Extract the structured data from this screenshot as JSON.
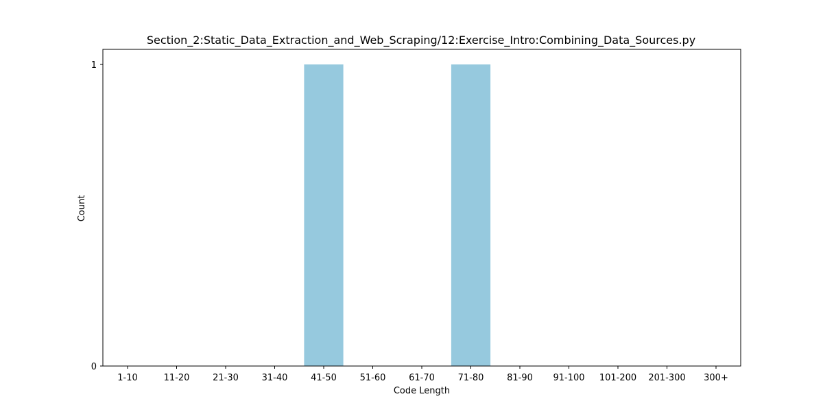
{
  "chart_data": {
    "type": "bar",
    "title": "Section_2:Static_Data_Extraction_and_Web_Scraping/12:Exercise_Intro:Combining_Data_Sources.py",
    "xlabel": "Code Length",
    "ylabel": "Count",
    "categories": [
      "1-10",
      "11-20",
      "21-30",
      "31-40",
      "41-50",
      "51-60",
      "61-70",
      "71-80",
      "81-90",
      "91-100",
      "101-200",
      "201-300",
      "300+"
    ],
    "values": [
      0,
      0,
      0,
      0,
      1,
      0,
      0,
      1,
      0,
      0,
      0,
      0,
      0
    ],
    "ylim": [
      0,
      1
    ],
    "yticks": [
      0,
      1
    ],
    "grid": false,
    "legend": "none",
    "bar_color": "#96c9de"
  }
}
